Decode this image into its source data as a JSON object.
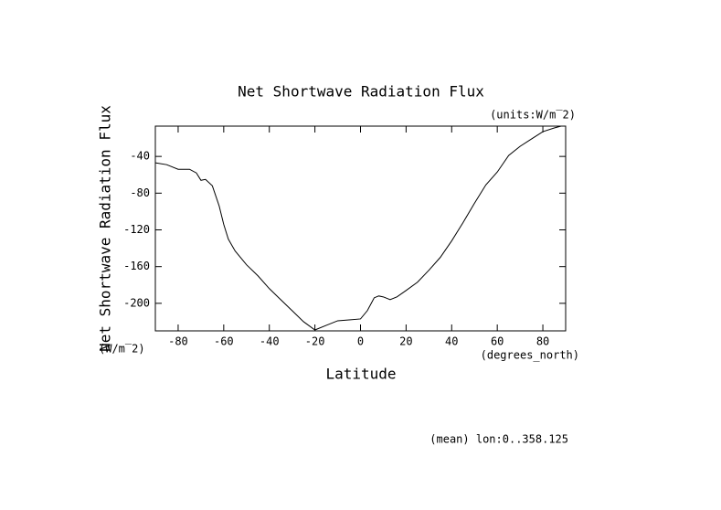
{
  "chart_data": {
    "type": "line",
    "title": "Net Shortwave Radiation Flux",
    "units_label": "(units:W/m‾2)",
    "y_label": "Net Shortwave Radiation Flux",
    "y_unit": "(W/m‾2)",
    "x_label": "Latitude",
    "x_unit": "(degrees_north)",
    "footnote": "(mean) lon:0..358.125",
    "x": [
      -90,
      -85,
      -80,
      -75,
      -72,
      -70,
      -68,
      -65,
      -62,
      -60,
      -58,
      -55,
      -50,
      -45,
      -40,
      -35,
      -30,
      -25,
      -20,
      -15,
      -10,
      -5,
      0,
      3,
      6,
      8,
      10,
      13,
      16,
      20,
      25,
      30,
      35,
      40,
      45,
      50,
      55,
      60,
      65,
      70,
      75,
      80,
      85,
      88
    ],
    "series": [
      {
        "name": "Net Shortwave Radiation Flux",
        "color": "#000000",
        "values": [
          -47,
          -49,
          -54,
          -54,
          -58,
          -66,
          -65,
          -72,
          -94,
          -114,
          -130,
          -143,
          -158,
          -170,
          -184,
          -196,
          -208,
          -220,
          -229,
          -224,
          -219,
          -218,
          -217,
          -208,
          -194,
          -192,
          -193,
          -196,
          -193,
          -186,
          -177,
          -164,
          -150,
          -132,
          -112,
          -91,
          -71,
          -57,
          -39,
          -29,
          -21,
          -13,
          -9,
          -7
        ]
      }
    ],
    "xlim": [
      -90,
      90
    ],
    "ylim": [
      -230,
      -7
    ],
    "xticks": [
      -80,
      -60,
      -40,
      -20,
      0,
      20,
      40,
      60,
      80
    ],
    "yticks": [
      -200,
      -160,
      -120,
      -80,
      -40
    ]
  }
}
